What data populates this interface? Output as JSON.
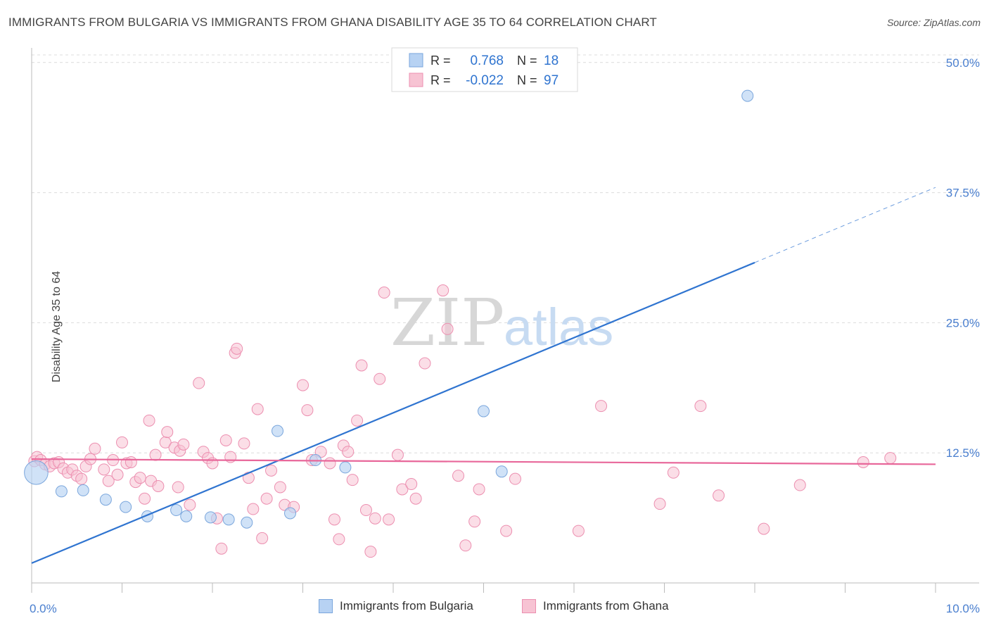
{
  "title": "IMMIGRANTS FROM BULGARIA VS IMMIGRANTS FROM GHANA DISABILITY AGE 35 TO 64 CORRELATION CHART",
  "source": "Source: ZipAtlas.com",
  "watermark": {
    "zip": "ZIP",
    "atlas": "atlas"
  },
  "colors": {
    "bulgaria_fill": "#b7d2f3",
    "bulgaria_stroke": "#7aa6dc",
    "bulgaria_line": "#2f74d0",
    "ghana_fill": "#f7c3d3",
    "ghana_stroke": "#ec8fb0",
    "ghana_line": "#e8679a",
    "tick_label": "#4a7fcf"
  },
  "legend": {
    "rows": [
      {
        "r_label": "R =",
        "r_value": "0.768",
        "n_label": "N =",
        "n_value": "18"
      },
      {
        "r_label": "R =",
        "r_value": "-0.022",
        "n_label": "N =",
        "n_value": "97"
      }
    ]
  },
  "bottom_legend": {
    "bulgaria": "Immigrants from Bulgaria",
    "ghana": "Immigrants from Ghana"
  },
  "chart_data": {
    "type": "scatter",
    "title": "IMMIGRANTS FROM BULGARIA VS IMMIGRANTS FROM GHANA DISABILITY AGE 35 TO 64 CORRELATION CHART",
    "xlabel": "",
    "ylabel": "Disability Age 35 to 64",
    "xlim": [
      0,
      10
    ],
    "ylim": [
      0,
      51
    ],
    "x_tick_labels": [
      "0.0%",
      "10.0%"
    ],
    "y_ticks": [
      12.5,
      25.0,
      37.5,
      50.0
    ],
    "y_tick_labels": [
      "12.5%",
      "25.0%",
      "37.5%",
      "50.0%"
    ],
    "grid": true,
    "series": [
      {
        "name": "Immigrants from Bulgaria",
        "r": 0.768,
        "n": 18,
        "points": [
          [
            0.05,
            10.6,
            3
          ],
          [
            0.33,
            8.8,
            1
          ],
          [
            0.57,
            8.9,
            1
          ],
          [
            0.82,
            8.0,
            1
          ],
          [
            1.04,
            7.3,
            1
          ],
          [
            1.28,
            6.4,
            1
          ],
          [
            1.6,
            7.0,
            1
          ],
          [
            1.71,
            6.4,
            1
          ],
          [
            1.98,
            6.3,
            1
          ],
          [
            2.18,
            6.1,
            1
          ],
          [
            2.38,
            5.8,
            1
          ],
          [
            2.72,
            14.6,
            1
          ],
          [
            2.86,
            6.7,
            1
          ],
          [
            3.14,
            11.8,
            1
          ],
          [
            3.47,
            11.1,
            1
          ],
          [
            5.0,
            16.5,
            1
          ],
          [
            5.2,
            10.7,
            1
          ],
          [
            7.92,
            46.8,
            1
          ]
        ],
        "trend": {
          "x0": 0,
          "y0": 1.9,
          "x1": 10,
          "y1": 38.0,
          "solid_until_x": 8.0
        }
      },
      {
        "name": "Immigrants from Ghana",
        "r": -0.022,
        "n": 97,
        "points": [
          [
            0.03,
            11.7,
            1
          ],
          [
            0.06,
            12.1,
            1
          ],
          [
            0.1,
            11.8,
            1
          ],
          [
            0.15,
            11.4,
            1
          ],
          [
            0.2,
            11.2,
            1
          ],
          [
            0.25,
            11.5,
            1
          ],
          [
            0.3,
            11.6,
            1
          ],
          [
            0.35,
            11.0,
            1
          ],
          [
            0.4,
            10.6,
            1
          ],
          [
            0.45,
            10.9,
            1
          ],
          [
            0.5,
            10.3,
            1
          ],
          [
            0.55,
            10.0,
            1
          ],
          [
            0.6,
            11.2,
            1
          ],
          [
            0.65,
            11.9,
            1
          ],
          [
            0.7,
            12.9,
            1
          ],
          [
            0.8,
            10.9,
            1
          ],
          [
            0.85,
            9.8,
            1
          ],
          [
            0.9,
            11.8,
            1
          ],
          [
            0.95,
            10.4,
            1
          ],
          [
            1.0,
            13.5,
            1
          ],
          [
            1.05,
            11.5,
            1
          ],
          [
            1.1,
            11.6,
            1
          ],
          [
            1.15,
            9.7,
            1
          ],
          [
            1.2,
            10.1,
            1
          ],
          [
            1.25,
            8.1,
            1
          ],
          [
            1.3,
            15.6,
            1
          ],
          [
            1.32,
            9.8,
            1
          ],
          [
            1.37,
            12.3,
            1
          ],
          [
            1.4,
            9.3,
            1
          ],
          [
            1.48,
            13.5,
            1
          ],
          [
            1.5,
            14.5,
            1
          ],
          [
            1.58,
            13.0,
            1
          ],
          [
            1.62,
            9.2,
            1
          ],
          [
            1.64,
            12.7,
            1
          ],
          [
            1.68,
            13.3,
            1
          ],
          [
            1.75,
            7.5,
            1
          ],
          [
            1.85,
            19.2,
            1
          ],
          [
            1.9,
            12.6,
            1
          ],
          [
            1.95,
            12.0,
            1
          ],
          [
            2.0,
            11.5,
            1
          ],
          [
            2.05,
            6.2,
            1
          ],
          [
            2.1,
            3.3,
            1
          ],
          [
            2.15,
            13.7,
            1
          ],
          [
            2.2,
            12.1,
            1
          ],
          [
            2.25,
            22.1,
            1
          ],
          [
            2.27,
            22.5,
            1
          ],
          [
            2.35,
            13.4,
            1
          ],
          [
            2.4,
            10.1,
            1
          ],
          [
            2.45,
            7.1,
            1
          ],
          [
            2.5,
            16.7,
            1
          ],
          [
            2.55,
            4.3,
            1
          ],
          [
            2.6,
            8.1,
            1
          ],
          [
            2.65,
            10.8,
            1
          ],
          [
            2.75,
            9.2,
            1
          ],
          [
            2.8,
            7.5,
            1
          ],
          [
            2.9,
            7.3,
            1
          ],
          [
            3.0,
            19.0,
            1
          ],
          [
            3.05,
            16.6,
            1
          ],
          [
            3.1,
            11.8,
            1
          ],
          [
            3.2,
            12.6,
            1
          ],
          [
            3.3,
            11.5,
            1
          ],
          [
            3.35,
            6.1,
            1
          ],
          [
            3.4,
            4.2,
            1
          ],
          [
            3.45,
            13.2,
            1
          ],
          [
            3.5,
            12.6,
            1
          ],
          [
            3.55,
            9.9,
            1
          ],
          [
            3.6,
            15.6,
            1
          ],
          [
            3.65,
            20.9,
            1
          ],
          [
            3.7,
            7.0,
            1
          ],
          [
            3.75,
            3.0,
            1
          ],
          [
            3.8,
            6.2,
            1
          ],
          [
            3.85,
            19.6,
            1
          ],
          [
            3.9,
            27.9,
            1
          ],
          [
            3.95,
            6.1,
            1
          ],
          [
            4.05,
            12.3,
            1
          ],
          [
            4.1,
            9.0,
            1
          ],
          [
            4.2,
            9.5,
            1
          ],
          [
            4.25,
            8.1,
            1
          ],
          [
            4.35,
            21.1,
            1
          ],
          [
            4.55,
            28.1,
            1
          ],
          [
            4.6,
            24.4,
            1
          ],
          [
            4.72,
            10.3,
            1
          ],
          [
            4.8,
            3.6,
            1
          ],
          [
            4.9,
            5.9,
            1
          ],
          [
            4.95,
            9.0,
            1
          ],
          [
            5.25,
            5.0,
            1
          ],
          [
            5.35,
            10.0,
            1
          ],
          [
            6.05,
            5.0,
            1
          ],
          [
            6.3,
            17.0,
            1
          ],
          [
            6.95,
            7.6,
            1
          ],
          [
            7.1,
            10.6,
            1
          ],
          [
            7.4,
            17.0,
            1
          ],
          [
            7.6,
            8.4,
            1
          ],
          [
            8.1,
            5.2,
            1
          ],
          [
            8.5,
            9.4,
            1
          ],
          [
            9.2,
            11.6,
            1
          ],
          [
            9.5,
            12.0,
            1
          ]
        ],
        "trend": {
          "x0": 0,
          "y0": 11.9,
          "x1": 10,
          "y1": 11.4
        }
      }
    ]
  }
}
